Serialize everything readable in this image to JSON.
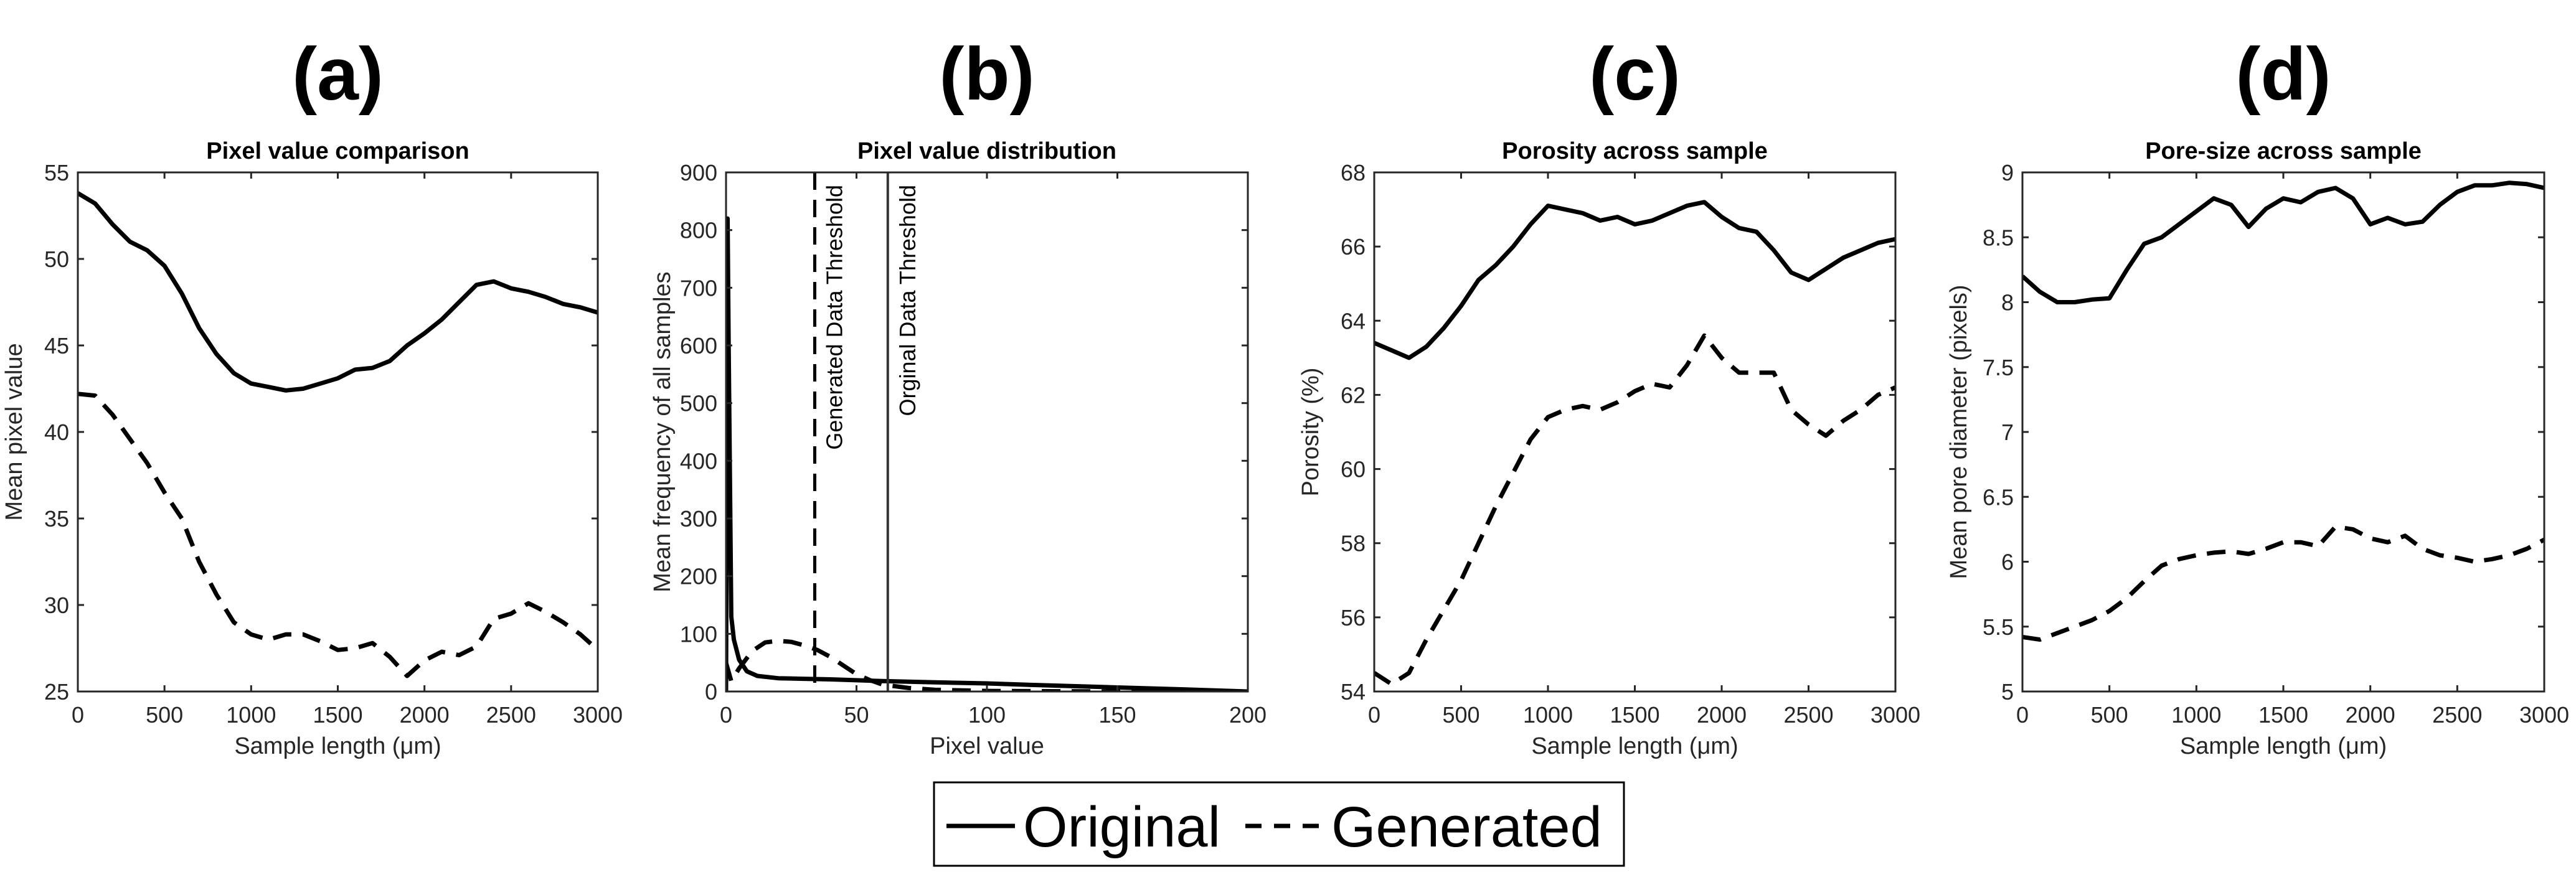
{
  "legend": {
    "original": "Original",
    "generated": "Generated"
  },
  "chart_data": [
    {
      "panel": "(a)",
      "type": "line",
      "title": "Pixel value comparison",
      "xlabel": "Sample length (μm)",
      "ylabel": "Mean pixel value",
      "xlim": [
        0,
        3000
      ],
      "ylim": [
        25,
        55
      ],
      "xticks": [
        0,
        500,
        1000,
        1500,
        2000,
        2500,
        3000
      ],
      "yticks": [
        25,
        30,
        35,
        40,
        45,
        50,
        55
      ],
      "series": [
        {
          "name": "Original",
          "style": "solid",
          "x": [
            0,
            100,
            200,
            300,
            400,
            500,
            600,
            700,
            800,
            900,
            1000,
            1100,
            1200,
            1300,
            1400,
            1500,
            1600,
            1700,
            1800,
            1900,
            2000,
            2100,
            2200,
            2300,
            2400,
            2500,
            2600,
            2700,
            2800,
            2900,
            3000
          ],
          "y": [
            53.8,
            53.2,
            52.0,
            51.0,
            50.5,
            49.6,
            48.0,
            46.0,
            44.5,
            43.4,
            42.8,
            42.6,
            42.4,
            42.5,
            42.8,
            43.1,
            43.6,
            43.7,
            44.1,
            45.0,
            45.7,
            46.5,
            47.5,
            48.5,
            48.7,
            48.3,
            48.1,
            47.8,
            47.4,
            47.2,
            46.9
          ]
        },
        {
          "name": "Generated",
          "style": "dashed",
          "x": [
            0,
            100,
            200,
            300,
            400,
            500,
            600,
            700,
            800,
            900,
            1000,
            1100,
            1200,
            1300,
            1400,
            1500,
            1600,
            1700,
            1800,
            1900,
            2000,
            2100,
            2200,
            2300,
            2400,
            2500,
            2600,
            2700,
            2800,
            2900,
            3000
          ],
          "y": [
            42.2,
            42.1,
            41.0,
            39.6,
            38.2,
            36.5,
            35.0,
            32.5,
            30.6,
            29.0,
            28.3,
            28.0,
            28.3,
            28.3,
            27.9,
            27.4,
            27.5,
            27.8,
            27.0,
            25.9,
            26.8,
            27.3,
            27.1,
            27.6,
            29.2,
            29.5,
            30.1,
            29.6,
            29.0,
            28.3,
            27.4
          ]
        }
      ]
    },
    {
      "panel": "(b)",
      "type": "line",
      "title": "Pixel value distribution",
      "xlabel": "Pixel value",
      "ylabel": "Mean frequency of all samples",
      "xlim": [
        0,
        200
      ],
      "ylim": [
        0,
        900
      ],
      "xticks": [
        0,
        50,
        100,
        150,
        200
      ],
      "yticks": [
        0,
        100,
        200,
        300,
        400,
        500,
        600,
        700,
        800,
        900
      ],
      "series": [
        {
          "name": "Original",
          "style": "solid",
          "x": [
            0,
            0.6,
            1,
            2,
            3,
            5,
            8,
            12,
            20,
            30,
            40,
            60,
            80,
            100,
            120,
            150,
            180,
            200
          ],
          "y": [
            0,
            820,
            600,
            130,
            90,
            55,
            35,
            27,
            23,
            22,
            21,
            18,
            16,
            14,
            11,
            7,
            3,
            0
          ]
        },
        {
          "name": "Generated",
          "style": "dashed",
          "x": [
            0,
            2,
            5,
            10,
            15,
            20,
            25,
            30,
            35,
            40,
            45,
            50,
            55,
            60,
            70,
            80,
            100,
            150,
            200
          ],
          "y": [
            50,
            18,
            40,
            70,
            85,
            88,
            86,
            80,
            72,
            60,
            45,
            30,
            20,
            12,
            6,
            3,
            1,
            0,
            0
          ]
        }
      ],
      "annotations": [
        {
          "text": "Generated Data Threshold",
          "x": 34,
          "style": "dashed"
        },
        {
          "text": "Orginal Data Threshold",
          "x": 62,
          "style": "solid"
        }
      ]
    },
    {
      "panel": "(c)",
      "type": "line",
      "title": "Porosity across sample",
      "xlabel": "Sample length (μm)",
      "ylabel": "Porosity (%)",
      "xlim": [
        0,
        3000
      ],
      "ylim": [
        54,
        68
      ],
      "xticks": [
        0,
        500,
        1000,
        1500,
        2000,
        2500,
        3000
      ],
      "yticks": [
        54,
        56,
        58,
        60,
        62,
        64,
        66,
        68
      ],
      "series": [
        {
          "name": "Original",
          "style": "solid",
          "x": [
            0,
            100,
            200,
            300,
            400,
            500,
            600,
            700,
            800,
            900,
            1000,
            1100,
            1200,
            1300,
            1400,
            1500,
            1600,
            1700,
            1800,
            1900,
            2000,
            2100,
            2200,
            2300,
            2400,
            2500,
            2600,
            2700,
            2800,
            2900,
            3000
          ],
          "y": [
            63.4,
            63.2,
            63.0,
            63.3,
            63.8,
            64.4,
            65.1,
            65.5,
            66.0,
            66.6,
            67.1,
            67.0,
            66.9,
            66.7,
            66.8,
            66.6,
            66.7,
            66.9,
            67.1,
            67.2,
            66.8,
            66.5,
            66.4,
            65.9,
            65.3,
            65.1,
            65.4,
            65.7,
            65.9,
            66.1,
            66.2
          ]
        },
        {
          "name": "Generated",
          "style": "dashed",
          "x": [
            0,
            100,
            200,
            300,
            400,
            500,
            600,
            700,
            800,
            900,
            1000,
            1100,
            1200,
            1300,
            1400,
            1500,
            1600,
            1700,
            1800,
            1900,
            2000,
            2100,
            2200,
            2300,
            2400,
            2500,
            2600,
            2700,
            2800,
            2900,
            3000
          ],
          "y": [
            54.5,
            54.2,
            54.5,
            55.4,
            56.2,
            57.0,
            58.0,
            59.0,
            59.9,
            60.8,
            61.4,
            61.6,
            61.7,
            61.6,
            61.8,
            62.1,
            62.3,
            62.2,
            62.8,
            63.6,
            63.0,
            62.6,
            62.6,
            62.6,
            61.6,
            61.2,
            60.9,
            61.3,
            61.6,
            62.0,
            62.2
          ]
        }
      ]
    },
    {
      "panel": "(d)",
      "type": "line",
      "title": "Pore-size across sample",
      "xlabel": "Sample length (μm)",
      "ylabel": "Mean pore diameter (pixels)",
      "xlim": [
        0,
        3000
      ],
      "ylim": [
        5,
        9
      ],
      "xticks": [
        0,
        500,
        1000,
        1500,
        2000,
        2500,
        3000
      ],
      "yticks": [
        5,
        5.5,
        6,
        6.5,
        7,
        7.5,
        8,
        8.5,
        9
      ],
      "series": [
        {
          "name": "Original",
          "style": "solid",
          "x": [
            0,
            100,
            200,
            300,
            400,
            500,
            600,
            700,
            800,
            900,
            1000,
            1100,
            1200,
            1300,
            1400,
            1500,
            1600,
            1700,
            1800,
            1900,
            2000,
            2100,
            2200,
            2300,
            2400,
            2500,
            2600,
            2700,
            2800,
            2900,
            3000
          ],
          "y": [
            8.2,
            8.08,
            8.0,
            8.0,
            8.02,
            8.03,
            8.25,
            8.45,
            8.5,
            8.6,
            8.7,
            8.8,
            8.75,
            8.58,
            8.72,
            8.8,
            8.77,
            8.85,
            8.88,
            8.8,
            8.6,
            8.65,
            8.6,
            8.62,
            8.75,
            8.85,
            8.9,
            8.9,
            8.92,
            8.91,
            8.88
          ]
        },
        {
          "name": "Generated",
          "style": "dashed",
          "x": [
            0,
            100,
            200,
            300,
            400,
            500,
            600,
            700,
            800,
            900,
            1000,
            1100,
            1200,
            1300,
            1400,
            1500,
            1600,
            1700,
            1800,
            1900,
            2000,
            2100,
            2200,
            2300,
            2400,
            2500,
            2600,
            2700,
            2800,
            2900,
            3000
          ],
          "y": [
            5.42,
            5.4,
            5.45,
            5.5,
            5.55,
            5.62,
            5.72,
            5.85,
            5.97,
            6.02,
            6.05,
            6.07,
            6.08,
            6.06,
            6.1,
            6.15,
            6.15,
            6.12,
            6.27,
            6.25,
            6.18,
            6.15,
            6.2,
            6.1,
            6.05,
            6.03,
            6.0,
            6.02,
            6.05,
            6.1,
            6.17
          ]
        }
      ]
    }
  ]
}
